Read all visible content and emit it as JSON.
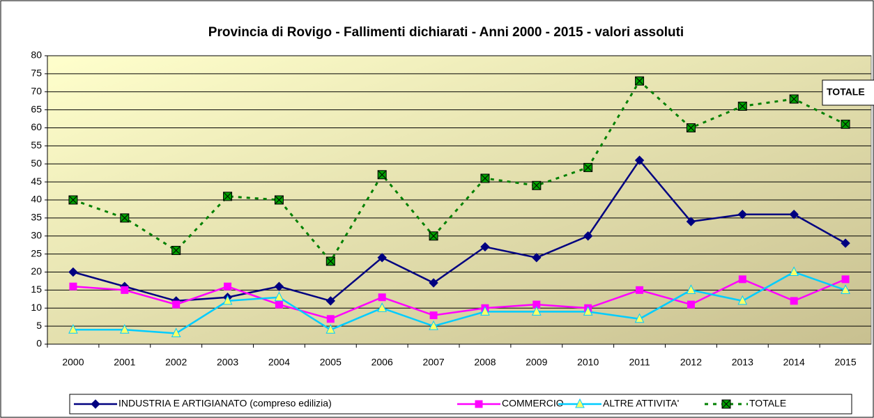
{
  "chart_data": {
    "type": "line",
    "title": "Provincia di Rovigo - Fallimenti dichiarati - Anni 2000 - 2015  - valori assoluti",
    "categories": [
      "2000",
      "2001",
      "2002",
      "2003",
      "2004",
      "2005",
      "2006",
      "2007",
      "2008",
      "2009",
      "2010",
      "2011",
      "2012",
      "2013",
      "2014",
      "2015"
    ],
    "series": [
      {
        "name": "INDUSTRIA E ARTIGIANATO (compreso edilizia)",
        "color": "#000080",
        "marker": "diamond",
        "marker_fill": "#000080",
        "dashed": false,
        "values": [
          20,
          16,
          12,
          13,
          16,
          12,
          24,
          17,
          27,
          24,
          30,
          51,
          34,
          36,
          36,
          28
        ]
      },
      {
        "name": "COMMERCIO",
        "color": "#ff00ff",
        "marker": "square",
        "marker_fill": "#ff00ff",
        "dashed": false,
        "values": [
          16,
          15,
          11,
          16,
          11,
          7,
          13,
          8,
          10,
          11,
          10,
          15,
          11,
          18,
          12,
          18
        ]
      },
      {
        "name": "ALTRE ATTIVITA'",
        "color": "#00ccff",
        "marker": "triangle",
        "marker_fill": "#ffff66",
        "dashed": false,
        "values": [
          4,
          4,
          3,
          12,
          13,
          4,
          10,
          5,
          9,
          9,
          9,
          7,
          15,
          12,
          20,
          15
        ]
      },
      {
        "name": "TOTALE",
        "color": "#008000",
        "marker": "xsquare",
        "marker_fill": "#00a000",
        "dashed": true,
        "values": [
          40,
          35,
          26,
          41,
          40,
          23,
          47,
          30,
          46,
          44,
          49,
          73,
          60,
          66,
          68,
          61
        ]
      }
    ],
    "annotation": "TOTALE",
    "ylim": [
      0,
      80
    ],
    "yticks": [
      0,
      5,
      10,
      15,
      20,
      25,
      30,
      35,
      40,
      45,
      50,
      55,
      60,
      65,
      70,
      75,
      80
    ],
    "grid": true,
    "legend": "bottom"
  }
}
